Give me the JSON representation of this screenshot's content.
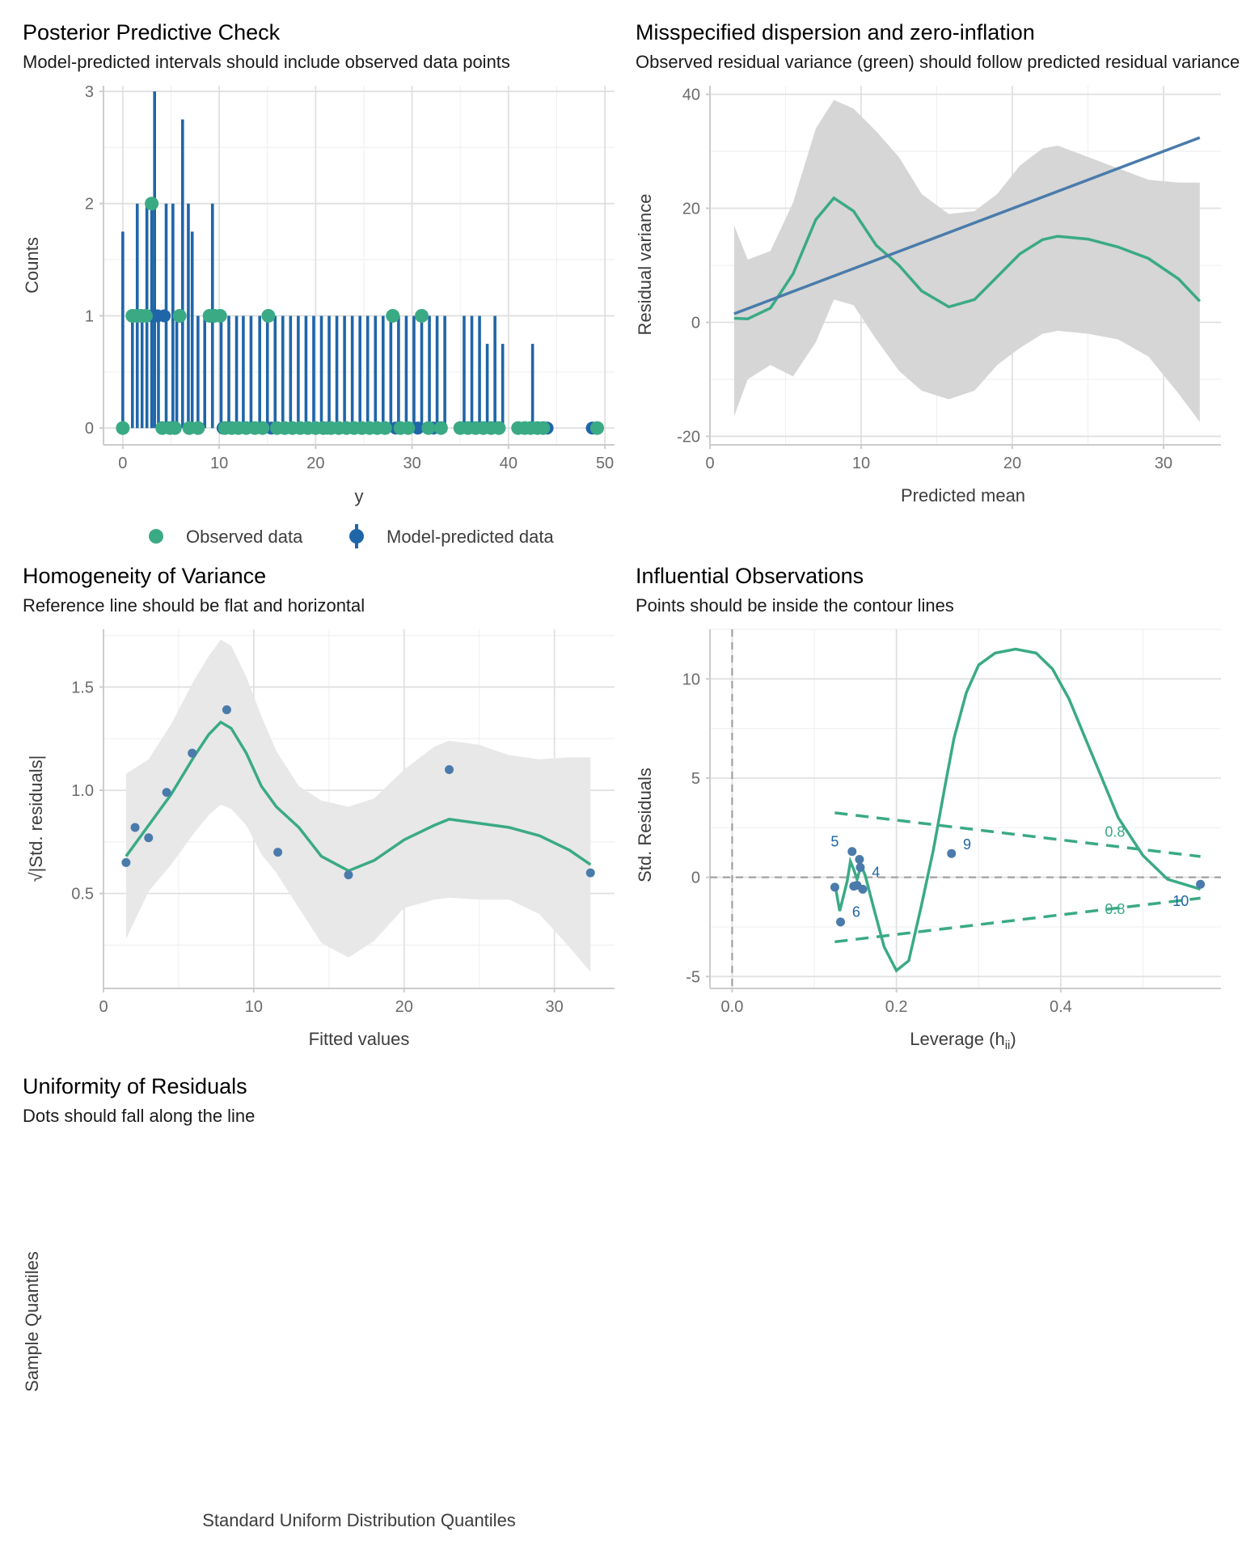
{
  "colors": {
    "green": "#3aaa85",
    "blue": "#1f66a8",
    "steel": "#4a7bab",
    "ribbon": "#d6d6d6",
    "ribbon_light": "#e8e8e8",
    "reference": "#a0a0a0"
  },
  "panels": {
    "ppc": {
      "title": "Posterior Predictive Check",
      "subtitle": "Model-predicted intervals should include observed data points",
      "xlabel": "y",
      "ylabel": "Counts",
      "xticks": [
        "0",
        "10",
        "20",
        "30",
        "40",
        "50"
      ],
      "yticks": [
        "0",
        "1",
        "2",
        "3"
      ],
      "legend": {
        "observed": "Observed data",
        "predicted": "Model-predicted data"
      }
    },
    "dispersion": {
      "title": "Misspecified dispersion and zero-inflation",
      "subtitle": "Observed residual variance (green) should follow predicted residual variance (blue)",
      "xlabel": "Predicted mean",
      "ylabel": "Residual variance",
      "xticks": [
        "0",
        "10",
        "20",
        "30"
      ],
      "yticks": [
        "-20",
        "0",
        "20",
        "40"
      ]
    },
    "homogeneity": {
      "title": "Homogeneity of Variance",
      "subtitle": "Reference line should be flat and horizontal",
      "xlabel": "Fitted values",
      "ylabel": "√|Std. residuals|",
      "xticks": [
        "0",
        "10",
        "20",
        "30"
      ],
      "yticks": [
        "0.5",
        "1.0",
        "1.5"
      ]
    },
    "influence": {
      "title": "Influential Observations",
      "subtitle": "Points should be inside the contour lines",
      "xlabel_main": "Leverage (h",
      "xlabel_sub": "ii",
      "xlabel_close": ")",
      "ylabel": "Std. Residuals",
      "xticks": [
        "0.0",
        "0.2",
        "0.4"
      ],
      "yticks": [
        "-5",
        "0",
        "5",
        "10"
      ],
      "contour_labels": [
        "0.8",
        "0.8"
      ],
      "point_labels": [
        "5",
        "6",
        "4",
        "9",
        "10"
      ]
    },
    "uniformity": {
      "title": "Uniformity of Residuals",
      "subtitle": "Dots should fall along the line",
      "xlabel": "Standard Uniform Distribution Quantiles",
      "ylabel": "Sample Quantiles"
    }
  },
  "chart_data": [
    {
      "type": "scatter",
      "title": "Posterior Predictive Check",
      "subtitle": "Model-predicted intervals should include observed data points",
      "xlabel": "y",
      "ylabel": "Counts",
      "xlim": [
        -2,
        51
      ],
      "ylim": [
        -0.15,
        3.05
      ],
      "legend": "bottom",
      "series": [
        {
          "name": "Model-predicted data",
          "intervals": [
            [
              0,
              0,
              1.75
            ],
            [
              1,
              0,
              1
            ],
            [
              1.5,
              0,
              2
            ],
            [
              2,
              0,
              1
            ],
            [
              2.5,
              0,
              2
            ],
            [
              3,
              0,
              2
            ],
            [
              3.3,
              0,
              3
            ],
            [
              3.7,
              0,
              1
            ],
            [
              4.5,
              0,
              2
            ],
            [
              5.2,
              0,
              2
            ],
            [
              5.6,
              0,
              1
            ],
            [
              6.2,
              0,
              2.75
            ],
            [
              6.8,
              0,
              2
            ],
            [
              7.2,
              0,
              1.75
            ],
            [
              7.8,
              0,
              1
            ],
            [
              8.5,
              0,
              1
            ],
            [
              9.3,
              0,
              2
            ],
            [
              10.2,
              0,
              1
            ],
            [
              11,
              0,
              1
            ],
            [
              11.8,
              0,
              1
            ],
            [
              12.5,
              0,
              1
            ],
            [
              13.3,
              0,
              1
            ],
            [
              14.2,
              0,
              1
            ],
            [
              15,
              0,
              1
            ],
            [
              15.8,
              0,
              1
            ],
            [
              16.6,
              0,
              1
            ],
            [
              17.4,
              0,
              1
            ],
            [
              18.2,
              0,
              1
            ],
            [
              19,
              0,
              1
            ],
            [
              19.8,
              0,
              1
            ],
            [
              20.6,
              0,
              1
            ],
            [
              21.4,
              0,
              1
            ],
            [
              22.2,
              0,
              1
            ],
            [
              23,
              0,
              1
            ],
            [
              23.8,
              0,
              1
            ],
            [
              24.6,
              0,
              1
            ],
            [
              25.4,
              0,
              1
            ],
            [
              26.2,
              0,
              1
            ],
            [
              27,
              0,
              1
            ],
            [
              27.8,
              0,
              1
            ],
            [
              28.6,
              0,
              1
            ],
            [
              29.4,
              0,
              1
            ],
            [
              30.2,
              0,
              1
            ],
            [
              31,
              0,
              1
            ],
            [
              31.8,
              0,
              1
            ],
            [
              32.6,
              0,
              1
            ],
            [
              33.4,
              0,
              1
            ],
            [
              35.4,
              0,
              1
            ],
            [
              36.2,
              0,
              1
            ],
            [
              37,
              0,
              1
            ],
            [
              37.8,
              0,
              0.75
            ],
            [
              38.6,
              0,
              1
            ],
            [
              39.4,
              0,
              0.75
            ],
            [
              42.5,
              0,
              0.75
            ]
          ],
          "points": [
            [
              0,
              0
            ],
            [
              3,
              1
            ],
            [
              3.6,
              1
            ],
            [
              4.3,
              1
            ],
            [
              10.4,
              0
            ],
            [
              15.4,
              0
            ],
            [
              21.2,
              0
            ],
            [
              28.3,
              0
            ],
            [
              30.6,
              0
            ],
            [
              32.2,
              0
            ],
            [
              44,
              0
            ],
            [
              48.7,
              0
            ]
          ]
        },
        {
          "name": "Observed data",
          "points": [
            [
              0,
              0
            ],
            [
              1,
              1
            ],
            [
              1.4,
              1
            ],
            [
              1.9,
              1
            ],
            [
              2.4,
              1
            ],
            [
              3,
              2
            ],
            [
              4.1,
              0
            ],
            [
              4.9,
              0
            ],
            [
              5.4,
              0
            ],
            [
              5.9,
              1
            ],
            [
              6.9,
              0
            ],
            [
              7.8,
              0
            ],
            [
              9,
              1
            ],
            [
              9.5,
              1
            ],
            [
              10.1,
              1
            ],
            [
              10.6,
              0
            ],
            [
              11.3,
              0
            ],
            [
              12,
              0
            ],
            [
              12.8,
              0
            ],
            [
              13.7,
              0
            ],
            [
              14.5,
              0
            ],
            [
              15.1,
              1
            ],
            [
              16,
              0
            ],
            [
              16.8,
              0
            ],
            [
              17.6,
              0
            ],
            [
              18.4,
              0
            ],
            [
              19.2,
              0
            ],
            [
              20,
              0
            ],
            [
              20.8,
              0
            ],
            [
              21.6,
              0
            ],
            [
              22.4,
              0
            ],
            [
              23.2,
              0
            ],
            [
              24,
              0
            ],
            [
              24.8,
              0
            ],
            [
              25.6,
              0
            ],
            [
              26.4,
              0
            ],
            [
              27.2,
              0
            ],
            [
              28,
              1
            ],
            [
              28.8,
              0
            ],
            [
              29.6,
              0
            ],
            [
              31,
              1
            ],
            [
              31.7,
              0
            ],
            [
              33,
              0
            ],
            [
              35,
              0
            ],
            [
              35.8,
              0
            ],
            [
              36.6,
              0
            ],
            [
              37.4,
              0
            ],
            [
              38.2,
              0
            ],
            [
              39,
              0
            ],
            [
              41,
              0
            ],
            [
              41.7,
              0
            ],
            [
              42.3,
              0
            ],
            [
              43,
              0
            ],
            [
              43.6,
              0
            ],
            [
              49.2,
              0
            ]
          ]
        }
      ]
    },
    {
      "type": "line",
      "title": "Misspecified dispersion and zero-inflation",
      "subtitle": "Observed residual variance (green) should follow predicted residual variance (blue)",
      "xlabel": "Predicted mean",
      "ylabel": "Residual variance",
      "xlim": [
        0,
        33.8
      ],
      "ylim": [
        -21.5,
        41.5
      ],
      "series": [
        {
          "name": "predicted",
          "x": [
            1.6,
            32.4
          ],
          "y": [
            1.5,
            32.4
          ]
        },
        {
          "name": "observed",
          "x": [
            1.6,
            2.5,
            4,
            5.5,
            7,
            8.2,
            9.5,
            11,
            12.5,
            14,
            15.8,
            17.5,
            19,
            20.5,
            22,
            23,
            25,
            27,
            29,
            31,
            32.4
          ],
          "y": [
            0.7,
            0.6,
            2.5,
            8.5,
            18,
            21.8,
            19.5,
            13.5,
            10,
            5.5,
            2.7,
            4,
            8,
            12,
            14.5,
            15.1,
            14.6,
            13.2,
            11.2,
            7.6,
            3.7
          ]
        }
      ],
      "ribbon": {
        "x": [
          1.6,
          2.5,
          4,
          5.5,
          7,
          8.2,
          9.5,
          11,
          12.5,
          14,
          15.8,
          17.5,
          19,
          20.5,
          22,
          23,
          25,
          27,
          29,
          31,
          32.4
        ],
        "upper": [
          17,
          11,
          12.5,
          21,
          34,
          39,
          37.5,
          33.5,
          29,
          22.5,
          19,
          19.5,
          22.5,
          27.5,
          30.5,
          31,
          29,
          27,
          25,
          24.5,
          24.5
        ],
        "lower": [
          -16.5,
          -10,
          -7.5,
          -9.5,
          -3.5,
          4,
          3,
          -3,
          -8.5,
          -12,
          -13.5,
          -12,
          -7.5,
          -4.5,
          -2,
          -1.5,
          -2,
          -3,
          -6,
          -12.5,
          -17.5
        ]
      }
    },
    {
      "type": "scatter",
      "title": "Homogeneity of Variance",
      "subtitle": "Reference line should be flat and horizontal",
      "xlabel": "Fitted values",
      "ylabel": "√|Std. residuals|",
      "xlim": [
        0,
        34
      ],
      "ylim": [
        0.04,
        1.78
      ],
      "points": {
        "x": [
          1.5,
          2.1,
          3,
          4.2,
          5.9,
          8.2,
          11.6,
          16.3,
          23,
          32.4
        ],
        "y": [
          0.65,
          0.82,
          0.77,
          0.99,
          1.18,
          1.39,
          0.7,
          0.59,
          1.1,
          0.6
        ]
      },
      "smooth": {
        "x": [
          1.5,
          3,
          4.5,
          6,
          7,
          7.8,
          8.5,
          9.5,
          10.5,
          11.5,
          13,
          14.5,
          16.3,
          18,
          20,
          22,
          23,
          25,
          27,
          29,
          31,
          32.4
        ],
        "y": [
          0.68,
          0.83,
          0.98,
          1.16,
          1.27,
          1.33,
          1.3,
          1.18,
          1.02,
          0.92,
          0.82,
          0.68,
          0.61,
          0.66,
          0.76,
          0.83,
          0.86,
          0.84,
          0.82,
          0.78,
          0.71,
          0.64
        ]
      },
      "ribbon": {
        "x": [
          1.5,
          3,
          4.5,
          6,
          7,
          7.8,
          8.5,
          9.5,
          10.5,
          11.5,
          13,
          14.5,
          16.3,
          18,
          20,
          22,
          23,
          25,
          27,
          29,
          31,
          32.4
        ],
        "upper": [
          1.08,
          1.15,
          1.32,
          1.53,
          1.65,
          1.73,
          1.7,
          1.55,
          1.36,
          1.19,
          1.02,
          0.95,
          0.92,
          0.96,
          1.1,
          1.21,
          1.24,
          1.22,
          1.17,
          1.15,
          1.16,
          1.16
        ],
        "lower": [
          0.28,
          0.51,
          0.64,
          0.79,
          0.88,
          0.93,
          0.91,
          0.83,
          0.69,
          0.6,
          0.43,
          0.26,
          0.19,
          0.27,
          0.43,
          0.47,
          0.48,
          0.47,
          0.47,
          0.4,
          0.24,
          0.12
        ]
      }
    },
    {
      "type": "scatter",
      "title": "Influential Observations",
      "subtitle": "Points should be inside the contour lines",
      "xlabel": "Leverage (hii)",
      "ylabel": "Std. Residuals",
      "xlim": [
        -0.027,
        0.595
      ],
      "ylim": [
        -5.6,
        12.5
      ],
      "points": {
        "x": [
          0.125,
          0.132,
          0.146,
          0.148,
          0.152,
          0.155,
          0.156,
          0.159,
          0.267,
          0.57
        ],
        "y": [
          -0.5,
          -2.25,
          1.3,
          -0.45,
          -0.4,
          0.9,
          0.5,
          -0.6,
          1.2,
          -0.35
        ]
      },
      "labels": [
        {
          "text": "5",
          "x": 0.125,
          "y": 1.8
        },
        {
          "text": "6",
          "x": 0.151,
          "y": -1.75
        },
        {
          "text": "4",
          "x": 0.175,
          "y": 0.25
        },
        {
          "text": "9",
          "x": 0.286,
          "y": 1.65
        },
        {
          "text": "10",
          "x": 0.546,
          "y": -1.2
        }
      ],
      "smooth": {
        "x": [
          0.125,
          0.131,
          0.14,
          0.144,
          0.148,
          0.152,
          0.157,
          0.162,
          0.172,
          0.185,
          0.2,
          0.215,
          0.23,
          0.245,
          0.26,
          0.27,
          0.285,
          0.3,
          0.32,
          0.345,
          0.37,
          0.39,
          0.41,
          0.43,
          0.45,
          0.47,
          0.5,
          0.53,
          0.57
        ],
        "y": [
          -0.3,
          -1.7,
          -0.2,
          0.8,
          0.4,
          -0.1,
          0.6,
          0.1,
          -1.5,
          -3.5,
          -4.7,
          -4.2,
          -1.5,
          1.4,
          4.8,
          7,
          9.3,
          10.7,
          11.3,
          11.5,
          11.3,
          10.5,
          9,
          7,
          5,
          3,
          1.1,
          -0.1,
          -0.6
        ]
      },
      "contours": [
        {
          "label": "0.8",
          "x": [
            0.125,
            0.57
          ],
          "y": [
            3.25,
            1.05
          ]
        },
        {
          "label": "0.8",
          "x": [
            0.125,
            0.57
          ],
          "y": [
            -3.25,
            -1.05
          ]
        }
      ]
    },
    {
      "type": "scatter",
      "title": "Uniformity of Residuals",
      "subtitle": "Dots should fall along the line",
      "xlabel": "Standard Uniform Distribution Quantiles",
      "ylabel": "Sample Quantiles",
      "points": {
        "x": [],
        "y": []
      }
    }
  ]
}
